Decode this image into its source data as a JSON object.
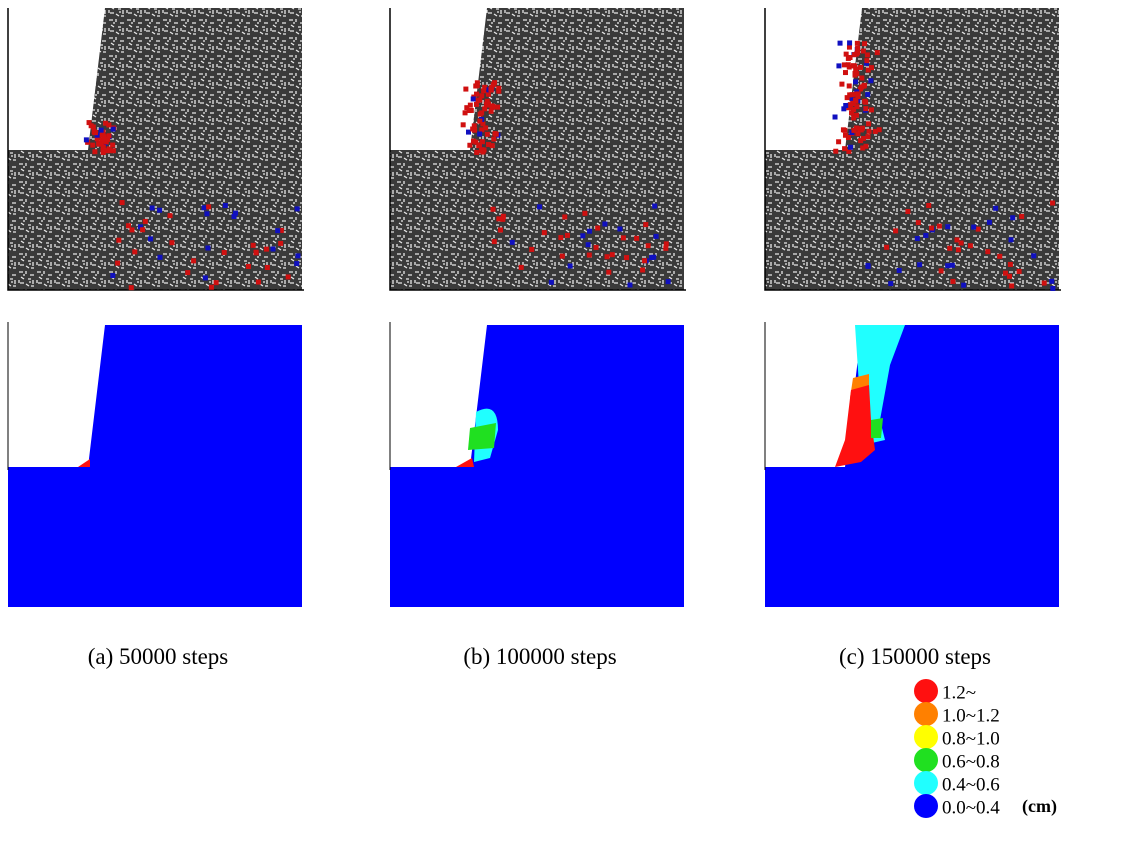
{
  "panels": [
    {
      "caption": "(a) 50000 steps"
    },
    {
      "caption": "(b) 100000 steps"
    },
    {
      "caption": "(c) 150000 steps"
    }
  ],
  "legend": {
    "items": [
      {
        "label": "1.2~",
        "color": "#ff1010"
      },
      {
        "label": "1.0~1.2",
        "color": "#ff8000"
      },
      {
        "label": "0.8~1.0",
        "color": "#ffff00"
      },
      {
        "label": "0.6~0.8",
        "color": "#20e020"
      },
      {
        "label": "0.4~0.6",
        "color": "#20ffff"
      },
      {
        "label": "0.0~0.4",
        "color": "#0000ff"
      }
    ],
    "unit": "(cm)"
  }
}
